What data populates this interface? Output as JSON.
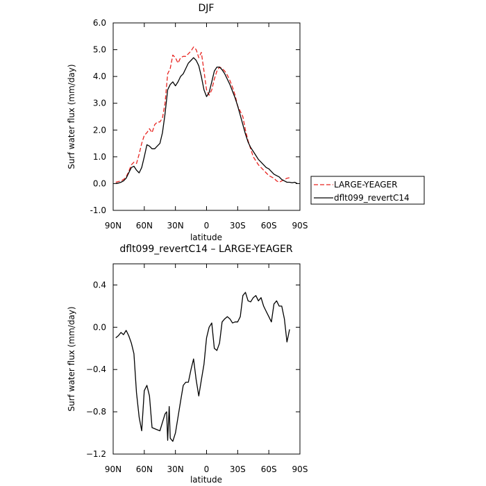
{
  "chart_data": [
    {
      "type": "line",
      "title": "DJF",
      "xlabel": "latitude",
      "ylabel": "Surf water flux (mm/day)",
      "xlim": [
        90,
        -90
      ],
      "ylim": [
        -1.0,
        6.0
      ],
      "x_ticks": [
        90,
        60,
        30,
        0,
        -30,
        -60,
        -90
      ],
      "x_tick_labels": [
        "90N",
        "60N",
        "30N",
        "0",
        "30S",
        "60S",
        "90S"
      ],
      "y_ticks": [
        -1,
        0,
        1,
        2,
        3,
        4,
        5,
        6
      ],
      "y_tick_labels": [
        "-1.0",
        "0.0",
        "1.0",
        "2.0",
        "3.0",
        "4.0",
        "5.0",
        "6.0"
      ],
      "legend_position": "right",
      "series": [
        {
          "name": "LARGE-YEAGER",
          "color": "#e8231f",
          "dash": "dashed",
          "x": [
            87.5,
            82.5,
            80,
            77.5,
            75,
            72.5,
            70,
            67.5,
            65,
            62.5,
            60,
            57.5,
            55,
            52.5,
            50,
            47.5,
            45,
            42.5,
            40,
            37.5,
            35,
            32.5,
            30,
            27.5,
            25,
            22.5,
            20,
            17.5,
            15,
            12.5,
            10,
            7.5,
            5,
            2.5,
            0,
            -2.5,
            -5,
            -7.5,
            -10,
            -12.5,
            -15,
            -17.5,
            -20,
            -22.5,
            -25,
            -27.5,
            -30,
            -32.5,
            -35,
            -37.5,
            -40,
            -42.5,
            -45,
            -47.5,
            -50,
            -52.5,
            -55,
            -57.5,
            -60,
            -62.5,
            -65,
            -67.5,
            -70,
            -72.5,
            -75,
            -77.5,
            -80
          ],
          "values": [
            0.05,
            0.1,
            0.15,
            0.25,
            0.45,
            0.7,
            0.8,
            0.75,
            1.1,
            1.5,
            1.8,
            1.9,
            2.05,
            1.9,
            2.2,
            2.3,
            2.3,
            2.45,
            3.0,
            4.1,
            4.3,
            4.8,
            4.7,
            4.5,
            4.7,
            4.75,
            4.75,
            4.85,
            4.95,
            5.1,
            5.0,
            4.7,
            4.9,
            4.2,
            3.5,
            3.3,
            3.5,
            3.9,
            4.2,
            4.35,
            4.3,
            4.2,
            4.05,
            3.85,
            3.6,
            3.3,
            2.9,
            2.7,
            2.5,
            2.0,
            1.6,
            1.3,
            1.0,
            0.85,
            0.7,
            0.6,
            0.5,
            0.4,
            0.3,
            0.25,
            0.2,
            0.1,
            0.05,
            0.1,
            0.15,
            0.2,
            0.22
          ]
        },
        {
          "name": "dflt099_revertC14",
          "color": "#000000",
          "dash": "solid",
          "x": [
            87.5,
            85,
            82.5,
            80,
            77.5,
            75,
            72.5,
            70,
            67.5,
            65,
            62.5,
            60,
            57.5,
            55,
            52.5,
            50,
            47.5,
            45,
            42.5,
            40,
            37.5,
            35,
            32.5,
            30,
            27.5,
            25,
            22.5,
            20,
            17.5,
            15,
            12.5,
            10,
            7.5,
            5,
            2.5,
            0,
            -2.5,
            -5,
            -7.5,
            -10,
            -12.5,
            -15,
            -17.5,
            -20,
            -22.5,
            -25,
            -27.5,
            -30,
            -32.5,
            -35,
            -37.5,
            -40,
            -42.5,
            -45,
            -47.5,
            -50,
            -52.5,
            -55,
            -57.5,
            -60,
            -62.5,
            -65,
            -67.5,
            -70,
            -72.5,
            -75,
            -77.5,
            -80,
            -82.5,
            -85,
            -87.5
          ],
          "values": [
            0.0,
            0.02,
            0.05,
            0.1,
            0.2,
            0.4,
            0.6,
            0.65,
            0.5,
            0.4,
            0.6,
            1.0,
            1.45,
            1.4,
            1.3,
            1.3,
            1.4,
            1.5,
            1.9,
            2.6,
            3.5,
            3.7,
            3.8,
            3.65,
            3.8,
            4.0,
            4.1,
            4.3,
            4.5,
            4.6,
            4.7,
            4.6,
            4.4,
            4.0,
            3.5,
            3.25,
            3.4,
            3.8,
            4.2,
            4.35,
            4.35,
            4.25,
            4.1,
            3.9,
            3.7,
            3.45,
            3.2,
            2.9,
            2.55,
            2.2,
            1.85,
            1.55,
            1.35,
            1.2,
            1.05,
            0.9,
            0.8,
            0.7,
            0.6,
            0.55,
            0.45,
            0.35,
            0.3,
            0.25,
            0.15,
            0.1,
            0.05,
            0.05,
            0.03,
            0.05,
            0.0
          ]
        }
      ]
    },
    {
      "type": "line",
      "title": "dflt099_revertC14 – LARGE-YEAGER",
      "xlabel": "latitude",
      "ylabel": "Surf water flux (mm/day)",
      "xlim": [
        90,
        -90
      ],
      "ylim": [
        -1.2,
        0.6
      ],
      "x_ticks": [
        90,
        60,
        30,
        0,
        -30,
        -60,
        -90
      ],
      "x_tick_labels": [
        "90N",
        "60N",
        "30N",
        "0",
        "30S",
        "60S",
        "90S"
      ],
      "y_ticks": [
        -1.2,
        -0.8,
        -0.4,
        0.0,
        0.4
      ],
      "y_tick_labels": [
        "−1.2",
        "−0.8",
        "−0.4",
        "0.0",
        "0.4"
      ],
      "series": [
        {
          "color": "#000000",
          "dash": "solid",
          "x": [
            87.5,
            85,
            82.5,
            80,
            77.5,
            75,
            72.5,
            70,
            67.5,
            65,
            62.5,
            60,
            57.5,
            55,
            52.5,
            50,
            47.5,
            45,
            42.5,
            40,
            38.5,
            37.5,
            36,
            35,
            32.5,
            30,
            27.5,
            25,
            22.5,
            20,
            17.5,
            15,
            12.5,
            10,
            7.5,
            5,
            2.5,
            1,
            0,
            -2.5,
            -5,
            -7.5,
            -10,
            -12.5,
            -15,
            -17.5,
            -20,
            -22.5,
            -25,
            -27.5,
            -30,
            -32.5,
            -35,
            -37.5,
            -40,
            -42.5,
            -45,
            -47.5,
            -50,
            -52.5,
            -55,
            -57.5,
            -60,
            -62.5,
            -65,
            -67.5,
            -70,
            -72.5,
            -75,
            -77.5,
            -80
          ],
          "values": [
            -0.1,
            -0.08,
            -0.05,
            -0.07,
            -0.03,
            -0.08,
            -0.15,
            -0.25,
            -0.62,
            -0.85,
            -0.98,
            -0.6,
            -0.55,
            -0.65,
            -0.95,
            -0.96,
            -0.97,
            -0.98,
            -0.9,
            -0.82,
            -0.8,
            -1.07,
            -0.75,
            -1.05,
            -1.08,
            -1.0,
            -0.85,
            -0.7,
            -0.55,
            -0.52,
            -0.52,
            -0.4,
            -0.3,
            -0.5,
            -0.65,
            -0.5,
            -0.35,
            -0.2,
            -0.1,
            0.0,
            0.04,
            -0.2,
            -0.22,
            -0.15,
            0.05,
            0.08,
            0.1,
            0.08,
            0.04,
            0.05,
            0.05,
            0.1,
            0.3,
            0.33,
            0.25,
            0.24,
            0.28,
            0.3,
            0.25,
            0.28,
            0.2,
            0.15,
            0.1,
            0.05,
            0.22,
            0.25,
            0.2,
            0.2,
            0.08,
            -0.14,
            -0.02
          ]
        }
      ]
    }
  ]
}
